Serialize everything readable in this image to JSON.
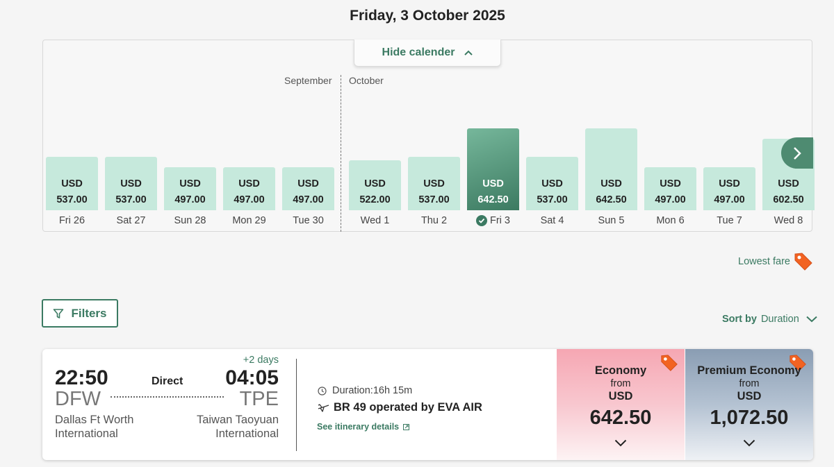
{
  "header": {
    "title": "Friday, 3 October 2025"
  },
  "calendar": {
    "toggle_label": "Hide calender",
    "months": {
      "left": "September",
      "right": "October"
    },
    "days": [
      {
        "label": "Fri 26",
        "currency": "USD",
        "price": "537.00",
        "price_value": 537.0,
        "selected": false
      },
      {
        "label": "Sat 27",
        "currency": "USD",
        "price": "537.00",
        "price_value": 537.0,
        "selected": false
      },
      {
        "label": "Sun 28",
        "currency": "USD",
        "price": "497.00",
        "price_value": 497.0,
        "selected": false
      },
      {
        "label": "Mon 29",
        "currency": "USD",
        "price": "497.00",
        "price_value": 497.0,
        "selected": false
      },
      {
        "label": "Tue 30",
        "currency": "USD",
        "price": "497.00",
        "price_value": 497.0,
        "selected": false
      },
      {
        "label": "Wed 1",
        "currency": "USD",
        "price": "522.00",
        "price_value": 522.0,
        "selected": false
      },
      {
        "label": "Thu 2",
        "currency": "USD",
        "price": "537.00",
        "price_value": 537.0,
        "selected": false
      },
      {
        "label": "Fri 3",
        "currency": "USD",
        "price": "642.50",
        "price_value": 642.5,
        "selected": true
      },
      {
        "label": "Sat 4",
        "currency": "USD",
        "price": "537.00",
        "price_value": 537.0,
        "selected": false
      },
      {
        "label": "Sun 5",
        "currency": "USD",
        "price": "642.50",
        "price_value": 642.5,
        "selected": false
      },
      {
        "label": "Mon 6",
        "currency": "USD",
        "price": "497.00",
        "price_value": 497.0,
        "selected": false
      },
      {
        "label": "Tue 7",
        "currency": "USD",
        "price": "497.00",
        "price_value": 497.0,
        "selected": false
      },
      {
        "label": "Wed 8",
        "currency": "USD",
        "price": "602.50",
        "price_value": 602.5,
        "selected": false
      }
    ]
  },
  "legend": {
    "lowest_fare": "Lowest fare"
  },
  "toolbar": {
    "filters_label": "Filters",
    "sort_label": "Sort by",
    "sort_value": "Duration"
  },
  "flight": {
    "departure": {
      "time": "22:50",
      "code": "DFW",
      "name_line1": "Dallas Ft Worth",
      "name_line2": "International"
    },
    "arrival": {
      "time": "04:05",
      "code": "TPE",
      "name_line1": "Taiwan Taoyuan",
      "name_line2": "International",
      "day_offset": "+2 days"
    },
    "stops": "Direct",
    "duration": "Duration:16h 15m",
    "operated_by": "BR 49 operated by EVA AIR",
    "itinerary_link": "See itinerary details",
    "fares": [
      {
        "cabin": "Economy",
        "from": "from",
        "currency": "USD",
        "price": "642.50"
      },
      {
        "cabin": "Premium Economy",
        "from": "from",
        "currency": "USD",
        "price": "1,072.50"
      }
    ]
  },
  "colors": {
    "accent": "#3b7a62",
    "bar": "#c6e9dc",
    "lowest_tag": "#f26322"
  }
}
